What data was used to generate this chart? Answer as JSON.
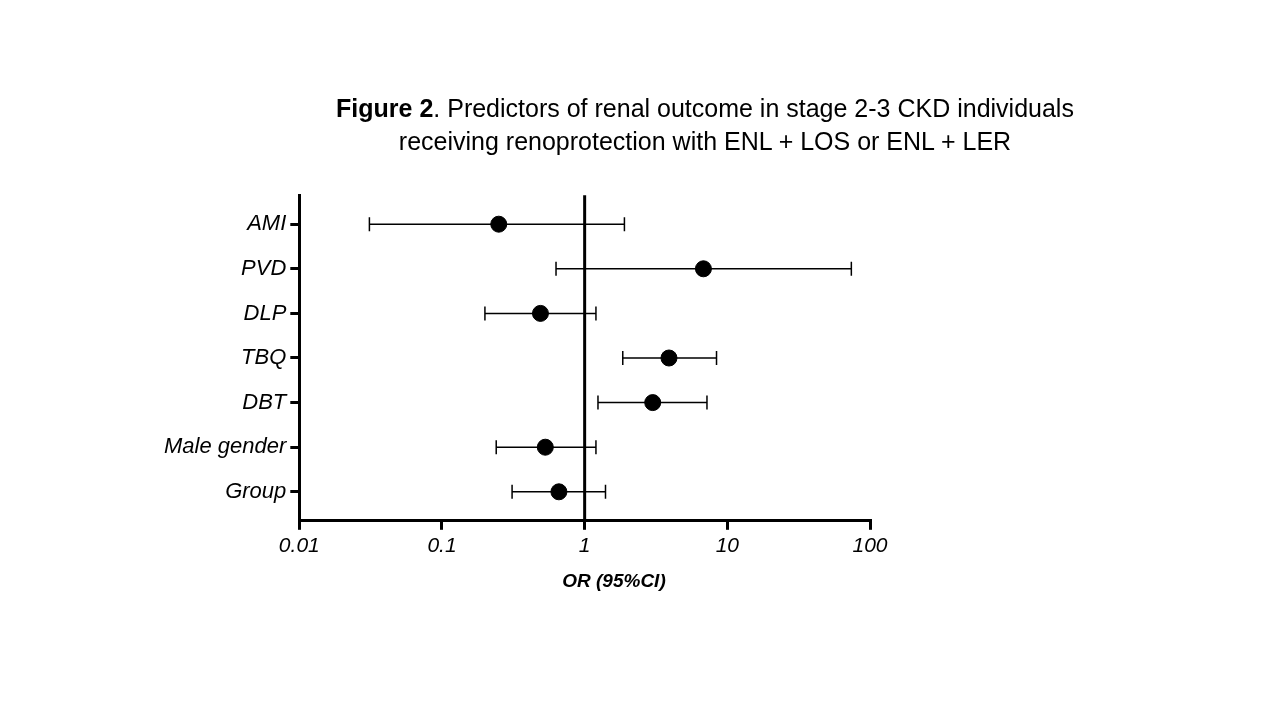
{
  "chart_data": {
    "type": "scatter",
    "title": "Figure 2. Predictors of renal outcome in stage 2-3 CKD individuals receiving renoprotection with ENL + LOS or ENL + LER",
    "xlabel": "OR (95%CI)",
    "orientation": "horizontal",
    "categories": [
      "AMI",
      "PVD",
      "DLP",
      "TBQ",
      "DBT",
      "Male gender",
      "Group"
    ],
    "values": [
      0.25,
      6.8,
      0.49,
      3.9,
      3.0,
      0.53,
      0.66
    ],
    "errors": [
      [
        0.031,
        1.9
      ],
      [
        0.63,
        74
      ],
      [
        0.2,
        1.2
      ],
      [
        1.85,
        8.4
      ],
      [
        1.24,
        7.2
      ],
      [
        0.24,
        1.2
      ],
      [
        0.31,
        1.4
      ]
    ],
    "color": "#000000",
    "marker": "circle",
    "xlim": [
      0.01,
      100
    ],
    "xticks": [
      0.01,
      0.1,
      1,
      10,
      100
    ],
    "log": "x",
    "grid": false,
    "legend": false,
    "ref_lines": [
      {
        "axis": "x",
        "value": 1,
        "color": "#000000"
      }
    ]
  }
}
